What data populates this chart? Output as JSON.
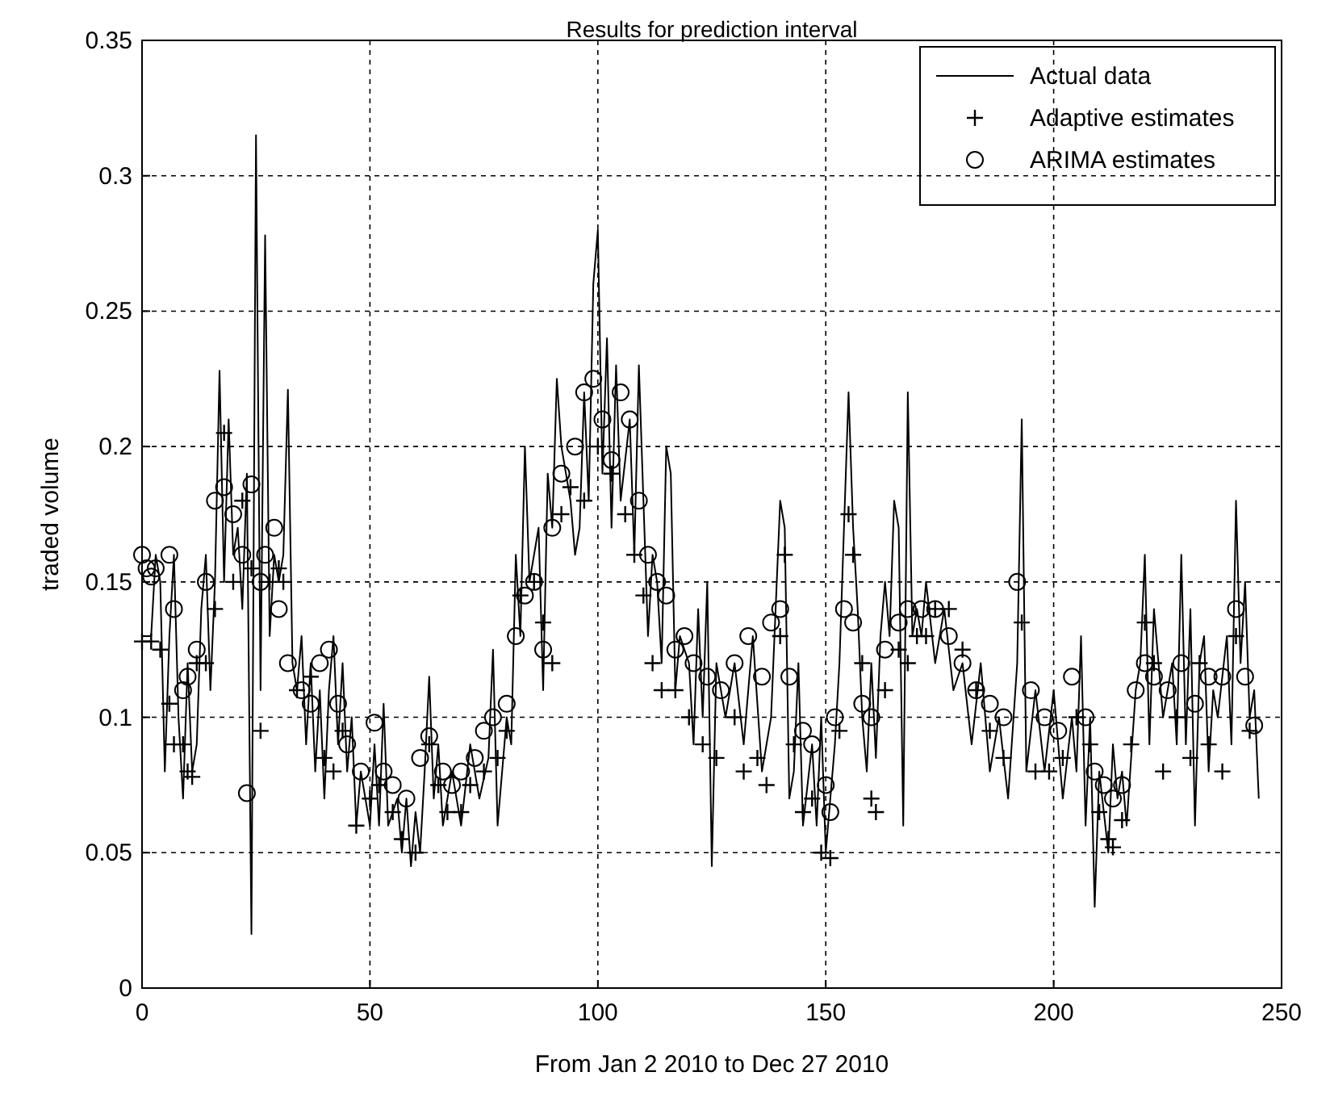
{
  "chart_data": {
    "type": "line",
    "title": "Results for prediction interval",
    "xlabel": "From Jan 2 2010  to Dec 27 2010",
    "ylabel": "traded volume",
    "xlim": [
      0,
      250
    ],
    "xticks": [
      0,
      50,
      100,
      150,
      200,
      250
    ],
    "ylim": [
      0,
      0.35
    ],
    "yticks": [
      0,
      0.05,
      0.1,
      0.15,
      0.2,
      0.25,
      0.3,
      0.35
    ],
    "grid": true,
    "legend": "top right",
    "series": [
      {
        "name": "Actual data",
        "color": "#000000",
        "marker": "none",
        "x": [
          0,
          2,
          3,
          4,
          5,
          6,
          7,
          8,
          9,
          10,
          11,
          12,
          13,
          14,
          15,
          16,
          17,
          18,
          19,
          20,
          21,
          22,
          23,
          24,
          25,
          26,
          27,
          28,
          29,
          30,
          31,
          32,
          33,
          34,
          35,
          36,
          37,
          38,
          39,
          40,
          41,
          42,
          43,
          44,
          45,
          46,
          47,
          48,
          50,
          51,
          52,
          53,
          54,
          56,
          57,
          58,
          59,
          60,
          61,
          62,
          63,
          64,
          65,
          66,
          68,
          70,
          72,
          74,
          76,
          77,
          78,
          80,
          81,
          82,
          83,
          84,
          85,
          87,
          88,
          89,
          90,
          91,
          92,
          94,
          95,
          96,
          97,
          98,
          99,
          100,
          101,
          102,
          103,
          104,
          105,
          107,
          108,
          109,
          110,
          111,
          112,
          113,
          114,
          115,
          116,
          117,
          118,
          120,
          121,
          122,
          123,
          124,
          125,
          126,
          128,
          130,
          132,
          134,
          136,
          138,
          140,
          141,
          142,
          143,
          144,
          145,
          147,
          148,
          149,
          150,
          151,
          152,
          153,
          155,
          156,
          157,
          158,
          159,
          160,
          161,
          162,
          163,
          164,
          165,
          166,
          167,
          168,
          169,
          170,
          171,
          172,
          174,
          176,
          178,
          180,
          182,
          184,
          186,
          188,
          190,
          192,
          193,
          194,
          196,
          198,
          200,
          202,
          204,
          205,
          206,
          207,
          208,
          209,
          210,
          212,
          213,
          214,
          215,
          216,
          218,
          219,
          220,
          221,
          222,
          224,
          226,
          227,
          228,
          229,
          230,
          231,
          232,
          233,
          234,
          235,
          236,
          238,
          239,
          240,
          241,
          242,
          243,
          244,
          245
        ],
        "values": [
          0.13,
          0.13,
          0.16,
          0.15,
          0.08,
          0.13,
          0.16,
          0.1,
          0.07,
          0.12,
          0.08,
          0.09,
          0.14,
          0.16,
          0.11,
          0.15,
          0.228,
          0.15,
          0.21,
          0.16,
          0.17,
          0.14,
          0.19,
          0.02,
          0.315,
          0.11,
          0.278,
          0.13,
          0.16,
          0.15,
          0.16,
          0.221,
          0.12,
          0.11,
          0.13,
          0.09,
          0.12,
          0.08,
          0.11,
          0.07,
          0.11,
          0.13,
          0.09,
          0.12,
          0.08,
          0.1,
          0.06,
          0.08,
          0.06,
          0.09,
          0.06,
          0.105,
          0.06,
          0.07,
          0.05,
          0.07,
          0.045,
          0.065,
          0.05,
          0.08,
          0.115,
          0.07,
          0.09,
          0.06,
          0.08,
          0.06,
          0.09,
          0.07,
          0.085,
          0.125,
          0.06,
          0.1,
          0.09,
          0.16,
          0.13,
          0.2,
          0.15,
          0.17,
          0.11,
          0.19,
          0.17,
          0.225,
          0.2,
          0.18,
          0.16,
          0.17,
          0.22,
          0.18,
          0.26,
          0.28,
          0.19,
          0.24,
          0.17,
          0.23,
          0.18,
          0.21,
          0.16,
          0.23,
          0.18,
          0.13,
          0.16,
          0.15,
          0.12,
          0.2,
          0.19,
          0.11,
          0.13,
          0.12,
          0.09,
          0.14,
          0.1,
          0.15,
          0.045,
          0.12,
          0.1,
          0.12,
          0.09,
          0.13,
          0.08,
          0.1,
          0.18,
          0.17,
          0.07,
          0.08,
          0.12,
          0.06,
          0.09,
          0.06,
          0.1,
          0.05,
          0.07,
          0.09,
          0.12,
          0.22,
          0.17,
          0.14,
          0.1,
          0.08,
          0.12,
          0.085,
          0.13,
          0.15,
          0.13,
          0.18,
          0.17,
          0.06,
          0.22,
          0.13,
          0.14,
          0.13,
          0.15,
          0.12,
          0.14,
          0.11,
          0.12,
          0.09,
          0.12,
          0.08,
          0.1,
          0.07,
          0.12,
          0.21,
          0.08,
          0.11,
          0.08,
          0.11,
          0.07,
          0.1,
          0.08,
          0.13,
          0.06,
          0.1,
          0.03,
          0.08,
          0.05,
          0.09,
          0.07,
          0.08,
          0.06,
          0.11,
          0.12,
          0.16,
          0.09,
          0.14,
          0.1,
          0.12,
          0.09,
          0.16,
          0.09,
          0.14,
          0.06,
          0.12,
          0.13,
          0.08,
          0.11,
          0.1,
          0.13,
          0.09,
          0.18,
          0.12,
          0.15,
          0.1,
          0.11,
          0.07
        ]
      },
      {
        "name": "Adaptive estimates",
        "type": "scatter",
        "color": "#000000",
        "marker": "cross",
        "x": [
          0,
          2,
          4,
          6,
          7,
          9,
          10,
          11,
          12,
          14,
          16,
          18,
          20,
          22,
          24,
          26,
          28,
          30,
          31,
          34,
          37,
          40,
          42,
          44,
          47,
          50,
          52,
          55,
          57,
          60,
          63,
          65,
          67,
          70,
          72,
          75,
          78,
          80,
          83,
          86,
          88,
          90,
          92,
          94,
          97,
          100,
          103,
          106,
          108,
          110,
          112,
          114,
          117,
          120,
          123,
          126,
          130,
          132,
          135,
          137,
          140,
          141,
          143,
          145,
          147,
          149,
          151,
          153,
          155,
          156,
          158,
          160,
          161,
          163,
          166,
          168,
          170,
          172,
          174,
          177,
          180,
          183,
          186,
          189,
          193,
          196,
          199,
          202,
          205,
          208,
          210,
          212,
          213,
          215,
          217,
          220,
          222,
          224,
          227,
          230,
          232,
          234,
          237,
          240,
          243
        ],
        "values": [
          0.128,
          0.128,
          0.125,
          0.105,
          0.09,
          0.09,
          0.08,
          0.078,
          0.12,
          0.12,
          0.14,
          0.205,
          0.15,
          0.18,
          0.155,
          0.095,
          0.15,
          0.155,
          0.15,
          0.11,
          0.115,
          0.085,
          0.08,
          0.095,
          0.06,
          0.07,
          0.075,
          0.065,
          0.055,
          0.05,
          0.09,
          0.075,
          0.065,
          0.065,
          0.075,
          0.08,
          0.085,
          0.095,
          0.145,
          0.15,
          0.135,
          0.12,
          0.175,
          0.185,
          0.18,
          0.2,
          0.19,
          0.175,
          0.16,
          0.145,
          0.12,
          0.11,
          0.11,
          0.1,
          0.09,
          0.085,
          0.1,
          0.08,
          0.085,
          0.075,
          0.13,
          0.16,
          0.09,
          0.065,
          0.07,
          0.05,
          0.048,
          0.095,
          0.175,
          0.16,
          0.12,
          0.07,
          0.065,
          0.11,
          0.125,
          0.12,
          0.13,
          0.13,
          0.14,
          0.14,
          0.125,
          0.11,
          0.095,
          0.085,
          0.135,
          0.08,
          0.08,
          0.085,
          0.1,
          0.09,
          0.065,
          0.055,
          0.052,
          0.062,
          0.09,
          0.135,
          0.12,
          0.08,
          0.1,
          0.085,
          0.12,
          0.09,
          0.08,
          0.13,
          0.095
        ]
      },
      {
        "name": "ARIMA estimates",
        "type": "scatter",
        "color": "#000000",
        "marker": "circle",
        "x": [
          0,
          1,
          2,
          3,
          6,
          7,
          9,
          10,
          12,
          14,
          16,
          18,
          20,
          22,
          23,
          24,
          26,
          27,
          29,
          30,
          32,
          35,
          37,
          39,
          41,
          43,
          45,
          48,
          51,
          53,
          55,
          58,
          61,
          63,
          66,
          68,
          70,
          73,
          75,
          77,
          80,
          82,
          84,
          86,
          88,
          90,
          92,
          95,
          97,
          99,
          101,
          103,
          105,
          107,
          109,
          111,
          113,
          115,
          117,
          119,
          121,
          124,
          127,
          130,
          133,
          136,
          138,
          140,
          142,
          145,
          147,
          150,
          151,
          152,
          154,
          156,
          158,
          160,
          163,
          166,
          168,
          171,
          174,
          177,
          180,
          183,
          186,
          189,
          192,
          195,
          198,
          201,
          204,
          207,
          209,
          211,
          213,
          215,
          218,
          220,
          222,
          225,
          228,
          231,
          234,
          237,
          240,
          242,
          244
        ],
        "values": [
          0.16,
          0.155,
          0.152,
          0.155,
          0.16,
          0.14,
          0.11,
          0.115,
          0.125,
          0.15,
          0.18,
          0.185,
          0.175,
          0.16,
          0.072,
          0.186,
          0.15,
          0.16,
          0.17,
          0.14,
          0.12,
          0.11,
          0.105,
          0.12,
          0.125,
          0.105,
          0.09,
          0.08,
          0.098,
          0.08,
          0.075,
          0.07,
          0.085,
          0.093,
          0.08,
          0.075,
          0.08,
          0.085,
          0.095,
          0.1,
          0.105,
          0.13,
          0.145,
          0.15,
          0.125,
          0.17,
          0.19,
          0.2,
          0.22,
          0.225,
          0.21,
          0.195,
          0.22,
          0.21,
          0.18,
          0.16,
          0.15,
          0.145,
          0.125,
          0.13,
          0.12,
          0.115,
          0.11,
          0.12,
          0.13,
          0.115,
          0.135,
          0.14,
          0.115,
          0.095,
          0.09,
          0.075,
          0.065,
          0.1,
          0.14,
          0.135,
          0.105,
          0.1,
          0.125,
          0.135,
          0.14,
          0.14,
          0.14,
          0.13,
          0.12,
          0.11,
          0.105,
          0.1,
          0.15,
          0.11,
          0.1,
          0.095,
          0.115,
          0.1,
          0.08,
          0.075,
          0.07,
          0.075,
          0.11,
          0.12,
          0.115,
          0.11,
          0.12,
          0.105,
          0.115,
          0.115,
          0.14,
          0.115,
          0.097
        ]
      }
    ]
  }
}
